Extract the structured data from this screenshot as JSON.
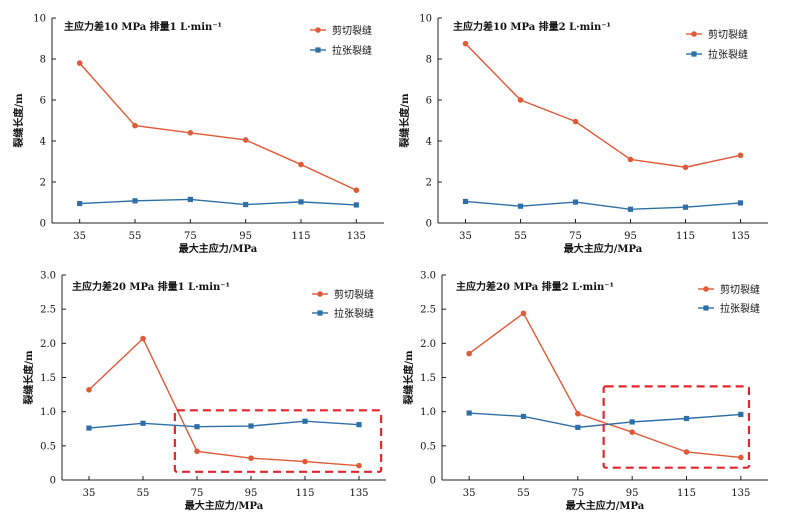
{
  "colors": {
    "shear": "#e05a38",
    "tensile": "#2f6fa8",
    "highlight": "#e3262e"
  },
  "chart_data": [
    {
      "type": "line",
      "title": "主应力差10 MPa 排量1 L·min⁻¹",
      "xlabel": "最大主应力/MPa",
      "ylabel": "裂缝长度/m",
      "categories": [
        "35",
        "55",
        "75",
        "95",
        "115",
        "135"
      ],
      "ylim": [
        0,
        10
      ],
      "yticks": [
        "0",
        "2",
        "4",
        "6",
        "8",
        "10"
      ],
      "legend_position": "top-right",
      "series": [
        {
          "name": "剪切裂缝",
          "marker": "circle",
          "values": [
            7.8,
            4.75,
            4.4,
            4.05,
            2.85,
            1.6
          ]
        },
        {
          "name": "拉张裂缝",
          "marker": "square",
          "values": [
            0.95,
            1.08,
            1.15,
            0.9,
            1.03,
            0.88
          ]
        }
      ],
      "highlight": null
    },
    {
      "type": "line",
      "title": "主应力差10 MPa 排量2 L·min⁻¹",
      "xlabel": "最大主应力/MPa",
      "ylabel": "裂缝长度/m",
      "categories": [
        "35",
        "55",
        "75",
        "95",
        "115",
        "135"
      ],
      "ylim": [
        0,
        10
      ],
      "yticks": [
        "0",
        "2",
        "4",
        "6",
        "8",
        "10"
      ],
      "legend_position": "top-right",
      "series": [
        {
          "name": "剪切裂缝",
          "marker": "circle",
          "values": [
            8.75,
            6.0,
            4.95,
            3.1,
            2.72,
            3.3
          ]
        },
        {
          "name": "拉张裂缝",
          "marker": "square",
          "values": [
            1.05,
            0.82,
            1.02,
            0.67,
            0.77,
            0.98
          ]
        }
      ],
      "highlight": null
    },
    {
      "type": "line",
      "title": "主应力差20 MPa 排量1 L·min⁻¹",
      "xlabel": "最大主应力/MPa",
      "ylabel": "裂缝长度/m",
      "categories": [
        "35",
        "55",
        "75",
        "95",
        "115",
        "135"
      ],
      "ylim": [
        0,
        3.0
      ],
      "yticks": [
        "0",
        "0.5",
        "1.0",
        "1.5",
        "2.0",
        "2.5",
        "3.0"
      ],
      "legend_position": "top-right",
      "series": [
        {
          "name": "剪切裂缝",
          "marker": "circle",
          "values": [
            1.32,
            2.07,
            0.42,
            0.32,
            0.27,
            0.21
          ]
        },
        {
          "name": "拉张裂缝",
          "marker": "square",
          "values": [
            0.76,
            0.83,
            0.78,
            0.79,
            0.86,
            0.81
          ]
        }
      ],
      "highlight": {
        "x_from": 66.8,
        "x_to": 143.2,
        "y_from": 0.12,
        "y_to": 1.02
      }
    },
    {
      "type": "line",
      "title": "主应力差20 MPa 排量2 L·min⁻¹",
      "xlabel": "最大主应力/MPa",
      "ylabel": "裂缝长度/m",
      "categories": [
        "35",
        "55",
        "75",
        "95",
        "115",
        "135"
      ],
      "ylim": [
        0,
        3.0
      ],
      "yticks": [
        "0",
        "0.5",
        "1.0",
        "1.5",
        "2.0",
        "2.5",
        "3.0"
      ],
      "legend_position": "top-right",
      "series": [
        {
          "name": "剪切裂缝",
          "marker": "circle",
          "values": [
            1.85,
            2.44,
            0.97,
            0.7,
            0.41,
            0.33
          ]
        },
        {
          "name": "拉张裂缝",
          "marker": "square",
          "values": [
            0.98,
            0.93,
            0.77,
            0.85,
            0.9,
            0.96
          ]
        }
      ],
      "highlight": {
        "x_from": 84.5,
        "x_to": 138.0,
        "y_from": 0.18,
        "y_to": 1.37
      }
    }
  ]
}
